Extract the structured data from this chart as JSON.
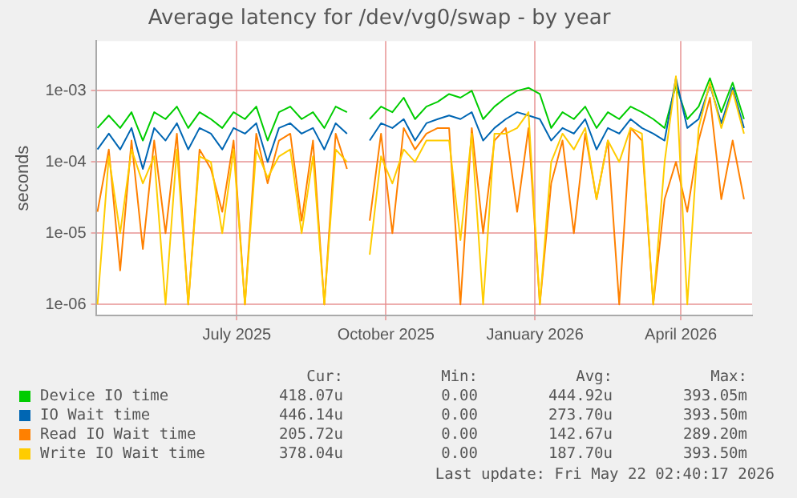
{
  "chart_data": {
    "type": "line",
    "title": "Average latency for /dev/vg0/swap - by year",
    "ylabel": "seconds",
    "log": "y",
    "grid": true,
    "legend": "bottom",
    "x": [
      "2025-04-06",
      "2025-04-13",
      "2025-04-20",
      "2025-04-27",
      "2025-05-04",
      "2025-05-11",
      "2025-05-18",
      "2025-05-25",
      "2025-06-01",
      "2025-06-08",
      "2025-06-15",
      "2025-06-22",
      "2025-06-29",
      "2025-07-06",
      "2025-07-13",
      "2025-07-20",
      "2025-07-27",
      "2025-08-03",
      "2025-08-10",
      "2025-08-17",
      "2025-08-24",
      "2025-08-31",
      "2025-09-07",
      "2025-09-14",
      "2025-09-21",
      "2025-09-28",
      "2025-10-05",
      "2025-10-12",
      "2025-10-19",
      "2025-10-26",
      "2025-11-02",
      "2025-11-09",
      "2025-11-16",
      "2025-11-23",
      "2025-11-30",
      "2025-12-07",
      "2025-12-14",
      "2025-12-21",
      "2025-12-28",
      "2026-01-04",
      "2026-01-11",
      "2026-01-18",
      "2026-01-25",
      "2026-02-01",
      "2026-02-08",
      "2026-02-15",
      "2026-02-22",
      "2026-03-01",
      "2026-03-08",
      "2026-03-15",
      "2026-03-22",
      "2026-03-29",
      "2026-04-05",
      "2026-04-12",
      "2026-04-19",
      "2026-04-26",
      "2026-05-03",
      "2026-05-10"
    ],
    "xlim": [
      "2025-04-05",
      "2026-05-15"
    ],
    "xticks": [
      {
        "value": "2025-07-01",
        "label": "July 2025"
      },
      {
        "value": "2025-10-01",
        "label": "October 2025"
      },
      {
        "value": "2026-01-01",
        "label": "January 2026"
      },
      {
        "value": "2026-04-01",
        "label": "April 2026"
      }
    ],
    "ylim": [
      7e-07,
      0.005
    ],
    "yticks": [
      {
        "value": 1e-06,
        "label": "1e-06"
      },
      {
        "value": 1e-05,
        "label": "1e-05"
      },
      {
        "value": 0.0001,
        "label": "1e-04"
      },
      {
        "value": 0.001,
        "label": "1e-03"
      }
    ],
    "series": [
      {
        "name": "Device IO time",
        "color": "#00cc00",
        "values": [
          0.0003,
          0.00045,
          0.0003,
          0.0005,
          0.0002,
          0.0005,
          0.0004,
          0.0006,
          0.0003,
          0.0005,
          0.0004,
          0.0003,
          0.0005,
          0.0004,
          0.0006,
          0.0002,
          0.0005,
          0.0006,
          0.0004,
          0.0005,
          0.0003,
          0.0006,
          0.0005,
          null,
          0.0004,
          0.0006,
          0.0005,
          0.0008,
          0.0004,
          0.0006,
          0.0007,
          0.0009,
          0.0008,
          0.001,
          0.0004,
          0.0006,
          0.0008,
          0.001,
          0.0011,
          0.0009,
          0.0003,
          0.0005,
          0.0004,
          0.0006,
          0.0003,
          0.0005,
          0.0004,
          0.0006,
          0.0005,
          0.0004,
          0.0003,
          0.0012,
          0.0004,
          0.0006,
          0.0015,
          0.0005,
          0.0013,
          0.0004
        ]
      },
      {
        "name": "IO Wait time",
        "color": "#0066b3",
        "values": [
          0.00015,
          0.00025,
          0.00015,
          0.0003,
          8e-05,
          0.0003,
          0.0002,
          0.00035,
          0.00015,
          0.0003,
          0.00025,
          0.00015,
          0.0003,
          0.00025,
          0.00035,
          0.0001,
          0.0003,
          0.00035,
          0.00025,
          0.0003,
          0.00015,
          0.00035,
          0.00025,
          null,
          0.0002,
          0.00035,
          0.0003,
          0.0004,
          0.0002,
          0.00035,
          0.0004,
          0.00045,
          0.0004,
          0.0005,
          0.0002,
          0.0003,
          0.0004,
          0.0005,
          0.00045,
          0.0004,
          0.0002,
          0.0003,
          0.00025,
          0.0004,
          0.00015,
          0.0003,
          0.00025,
          0.0004,
          0.0003,
          0.00025,
          0.0002,
          0.0015,
          0.0003,
          0.0004,
          0.0012,
          0.00035,
          0.0011,
          0.0003
        ]
      },
      {
        "name": "Read IO Wait time",
        "color": "#ff8000",
        "values": [
          2e-05,
          0.00015,
          3e-06,
          0.0002,
          6e-06,
          0.0002,
          1e-05,
          0.00025,
          1e-06,
          0.00015,
          8e-05,
          2e-05,
          0.0002,
          1e-06,
          0.00025,
          5e-05,
          0.0002,
          0.00025,
          1.5e-05,
          0.0002,
          1e-06,
          0.00025,
          8e-05,
          null,
          1.5e-05,
          0.00025,
          1e-05,
          0.0003,
          0.00015,
          0.00025,
          0.0003,
          0.0003,
          1e-06,
          0.0003,
          1e-05,
          0.0002,
          0.0003,
          2e-05,
          0.0003,
          1e-06,
          5e-05,
          0.0002,
          1e-05,
          0.00025,
          3e-05,
          0.0002,
          1e-06,
          0.0003,
          0.0002,
          1e-06,
          3e-05,
          0.0001,
          2e-05,
          0.0002,
          0.0008,
          3e-05,
          0.0002,
          3e-05
        ]
      },
      {
        "name": "Write IO Wait time",
        "color": "#ffcc00",
        "values": [
          1e-06,
          0.00012,
          1e-05,
          0.00015,
          5e-05,
          0.00012,
          1e-06,
          0.00015,
          1e-06,
          0.00012,
          0.0001,
          1e-05,
          0.00015,
          1e-06,
          0.00015,
          6e-05,
          0.00012,
          0.00015,
          1e-05,
          0.00012,
          1e-06,
          0.00015,
          0.0001,
          null,
          5e-06,
          0.00012,
          5e-05,
          0.00015,
          0.0001,
          0.0002,
          0.0002,
          0.0002,
          8e-06,
          0.00025,
          1e-06,
          0.00025,
          0.00025,
          0.0003,
          0.0005,
          1e-06,
          0.0001,
          0.00025,
          0.00015,
          0.0003,
          3e-05,
          0.0002,
          0.0001,
          0.0003,
          0.00025,
          1e-06,
          0.0001,
          0.0016,
          1e-06,
          0.0003,
          0.0013,
          0.0003,
          0.001,
          0.00025
        ]
      }
    ],
    "annotations": [
      "Cur:",
      "Min:",
      "Avg:",
      "Max:",
      "418.07u",
      "0.00",
      "444.92u",
      "393.05m",
      "446.14u",
      "0.00",
      "273.70u",
      "393.50m",
      "205.72u",
      "0.00",
      "142.67u",
      "289.20m",
      "378.04u",
      "0.00",
      "187.70u",
      "393.50m",
      "Last update: Fri May 22 02:40:17 2026"
    ]
  }
}
